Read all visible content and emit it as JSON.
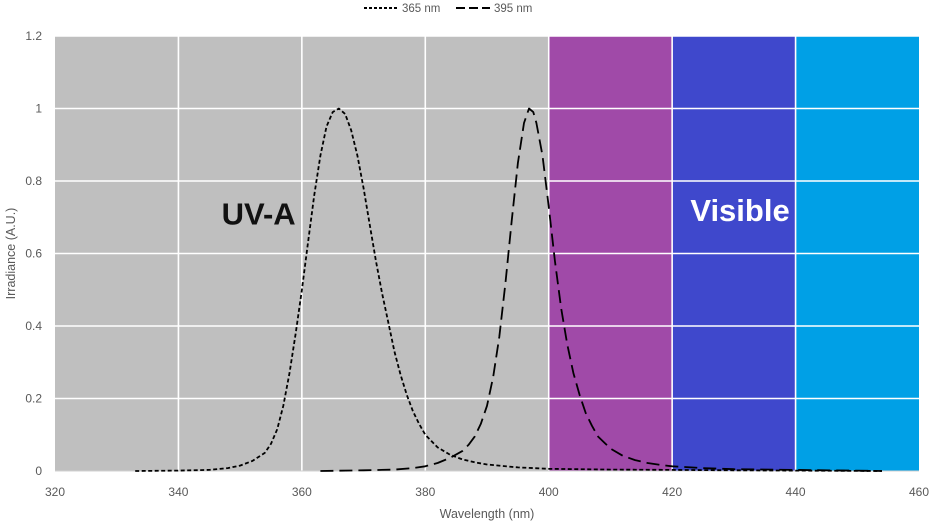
{
  "chart_data": {
    "type": "line",
    "title": "",
    "xlabel": "Wavelength (nm)",
    "ylabel": "Irradiance (A.U.)",
    "xlim": [
      320,
      460
    ],
    "ylim": [
      0,
      1.2
    ],
    "x_ticks": [
      320,
      340,
      360,
      380,
      400,
      420,
      440,
      460
    ],
    "x_tick_labels": [
      "320",
      "340",
      "360",
      "380",
      "400",
      "420",
      "440",
      "460"
    ],
    "y_ticks": [
      0,
      0.2,
      0.4,
      0.6,
      0.8,
      1.0,
      1.2
    ],
    "y_tick_labels": [
      "0",
      "0.2",
      "0.4",
      "0.6",
      "0.8",
      "1",
      "1.2"
    ],
    "grid": true,
    "legend_position": "top-center",
    "bands": [
      {
        "from": 320,
        "to": 400,
        "color": "#bfbfbf"
      },
      {
        "from": 400,
        "to": 420,
        "color": "#a04aa8"
      },
      {
        "from": 420,
        "to": 440,
        "color": "#3f48cc"
      },
      {
        "from": 440,
        "to": 460,
        "color": "#00a0e6"
      }
    ],
    "region_labels": [
      {
        "text": "UV-A",
        "x": 353,
        "y": 0.68,
        "color": "#111111"
      },
      {
        "text": "Visible",
        "x": 431,
        "y": 0.69,
        "color": "#ffffff"
      }
    ],
    "series": [
      {
        "name": "365 nm",
        "dash": "short",
        "color": "#000000",
        "points": [
          [
            333,
            0.0
          ],
          [
            340,
            0.001
          ],
          [
            345,
            0.003
          ],
          [
            348,
            0.008
          ],
          [
            350,
            0.015
          ],
          [
            352,
            0.028
          ],
          [
            354,
            0.05
          ],
          [
            355,
            0.075
          ],
          [
            356,
            0.115
          ],
          [
            357,
            0.18
          ],
          [
            358,
            0.27
          ],
          [
            359,
            0.38
          ],
          [
            360,
            0.5
          ],
          [
            361,
            0.63
          ],
          [
            362,
            0.76
          ],
          [
            363,
            0.87
          ],
          [
            364,
            0.95
          ],
          [
            365,
            0.99
          ],
          [
            366,
            1.0
          ],
          [
            367,
            0.985
          ],
          [
            368,
            0.94
          ],
          [
            369,
            0.87
          ],
          [
            370,
            0.78
          ],
          [
            371,
            0.68
          ],
          [
            372,
            0.58
          ],
          [
            373,
            0.49
          ],
          [
            374,
            0.41
          ],
          [
            375,
            0.33
          ],
          [
            376,
            0.265
          ],
          [
            377,
            0.21
          ],
          [
            378,
            0.165
          ],
          [
            379,
            0.13
          ],
          [
            380,
            0.1
          ],
          [
            382,
            0.065
          ],
          [
            384,
            0.045
          ],
          [
            386,
            0.032
          ],
          [
            388,
            0.024
          ],
          [
            390,
            0.018
          ],
          [
            395,
            0.01
          ],
          [
            400,
            0.006
          ],
          [
            410,
            0.004
          ],
          [
            420,
            0.003
          ],
          [
            430,
            0.002
          ],
          [
            440,
            0.001
          ],
          [
            454,
            0.0
          ]
        ]
      },
      {
        "name": "395 nm",
        "dash": "long",
        "color": "#000000",
        "points": [
          [
            363,
            0.0
          ],
          [
            370,
            0.002
          ],
          [
            375,
            0.004
          ],
          [
            378,
            0.008
          ],
          [
            380,
            0.013
          ],
          [
            382,
            0.022
          ],
          [
            384,
            0.036
          ],
          [
            386,
            0.055
          ],
          [
            387,
            0.072
          ],
          [
            388,
            0.095
          ],
          [
            389,
            0.13
          ],
          [
            390,
            0.18
          ],
          [
            391,
            0.26
          ],
          [
            392,
            0.37
          ],
          [
            393,
            0.52
          ],
          [
            394,
            0.69
          ],
          [
            395,
            0.85
          ],
          [
            396,
            0.96
          ],
          [
            396.8,
            1.0
          ],
          [
            397.5,
            0.99
          ],
          [
            398,
            0.96
          ],
          [
            399,
            0.87
          ],
          [
            400,
            0.73
          ],
          [
            401,
            0.58
          ],
          [
            402,
            0.45
          ],
          [
            403,
            0.35
          ],
          [
            404,
            0.27
          ],
          [
            405,
            0.21
          ],
          [
            406,
            0.16
          ],
          [
            407,
            0.125
          ],
          [
            408,
            0.095
          ],
          [
            410,
            0.062
          ],
          [
            412,
            0.042
          ],
          [
            414,
            0.03
          ],
          [
            416,
            0.022
          ],
          [
            418,
            0.017
          ],
          [
            420,
            0.013
          ],
          [
            425,
            0.008
          ],
          [
            430,
            0.005
          ],
          [
            440,
            0.003
          ],
          [
            454,
            0.0
          ]
        ]
      }
    ]
  }
}
